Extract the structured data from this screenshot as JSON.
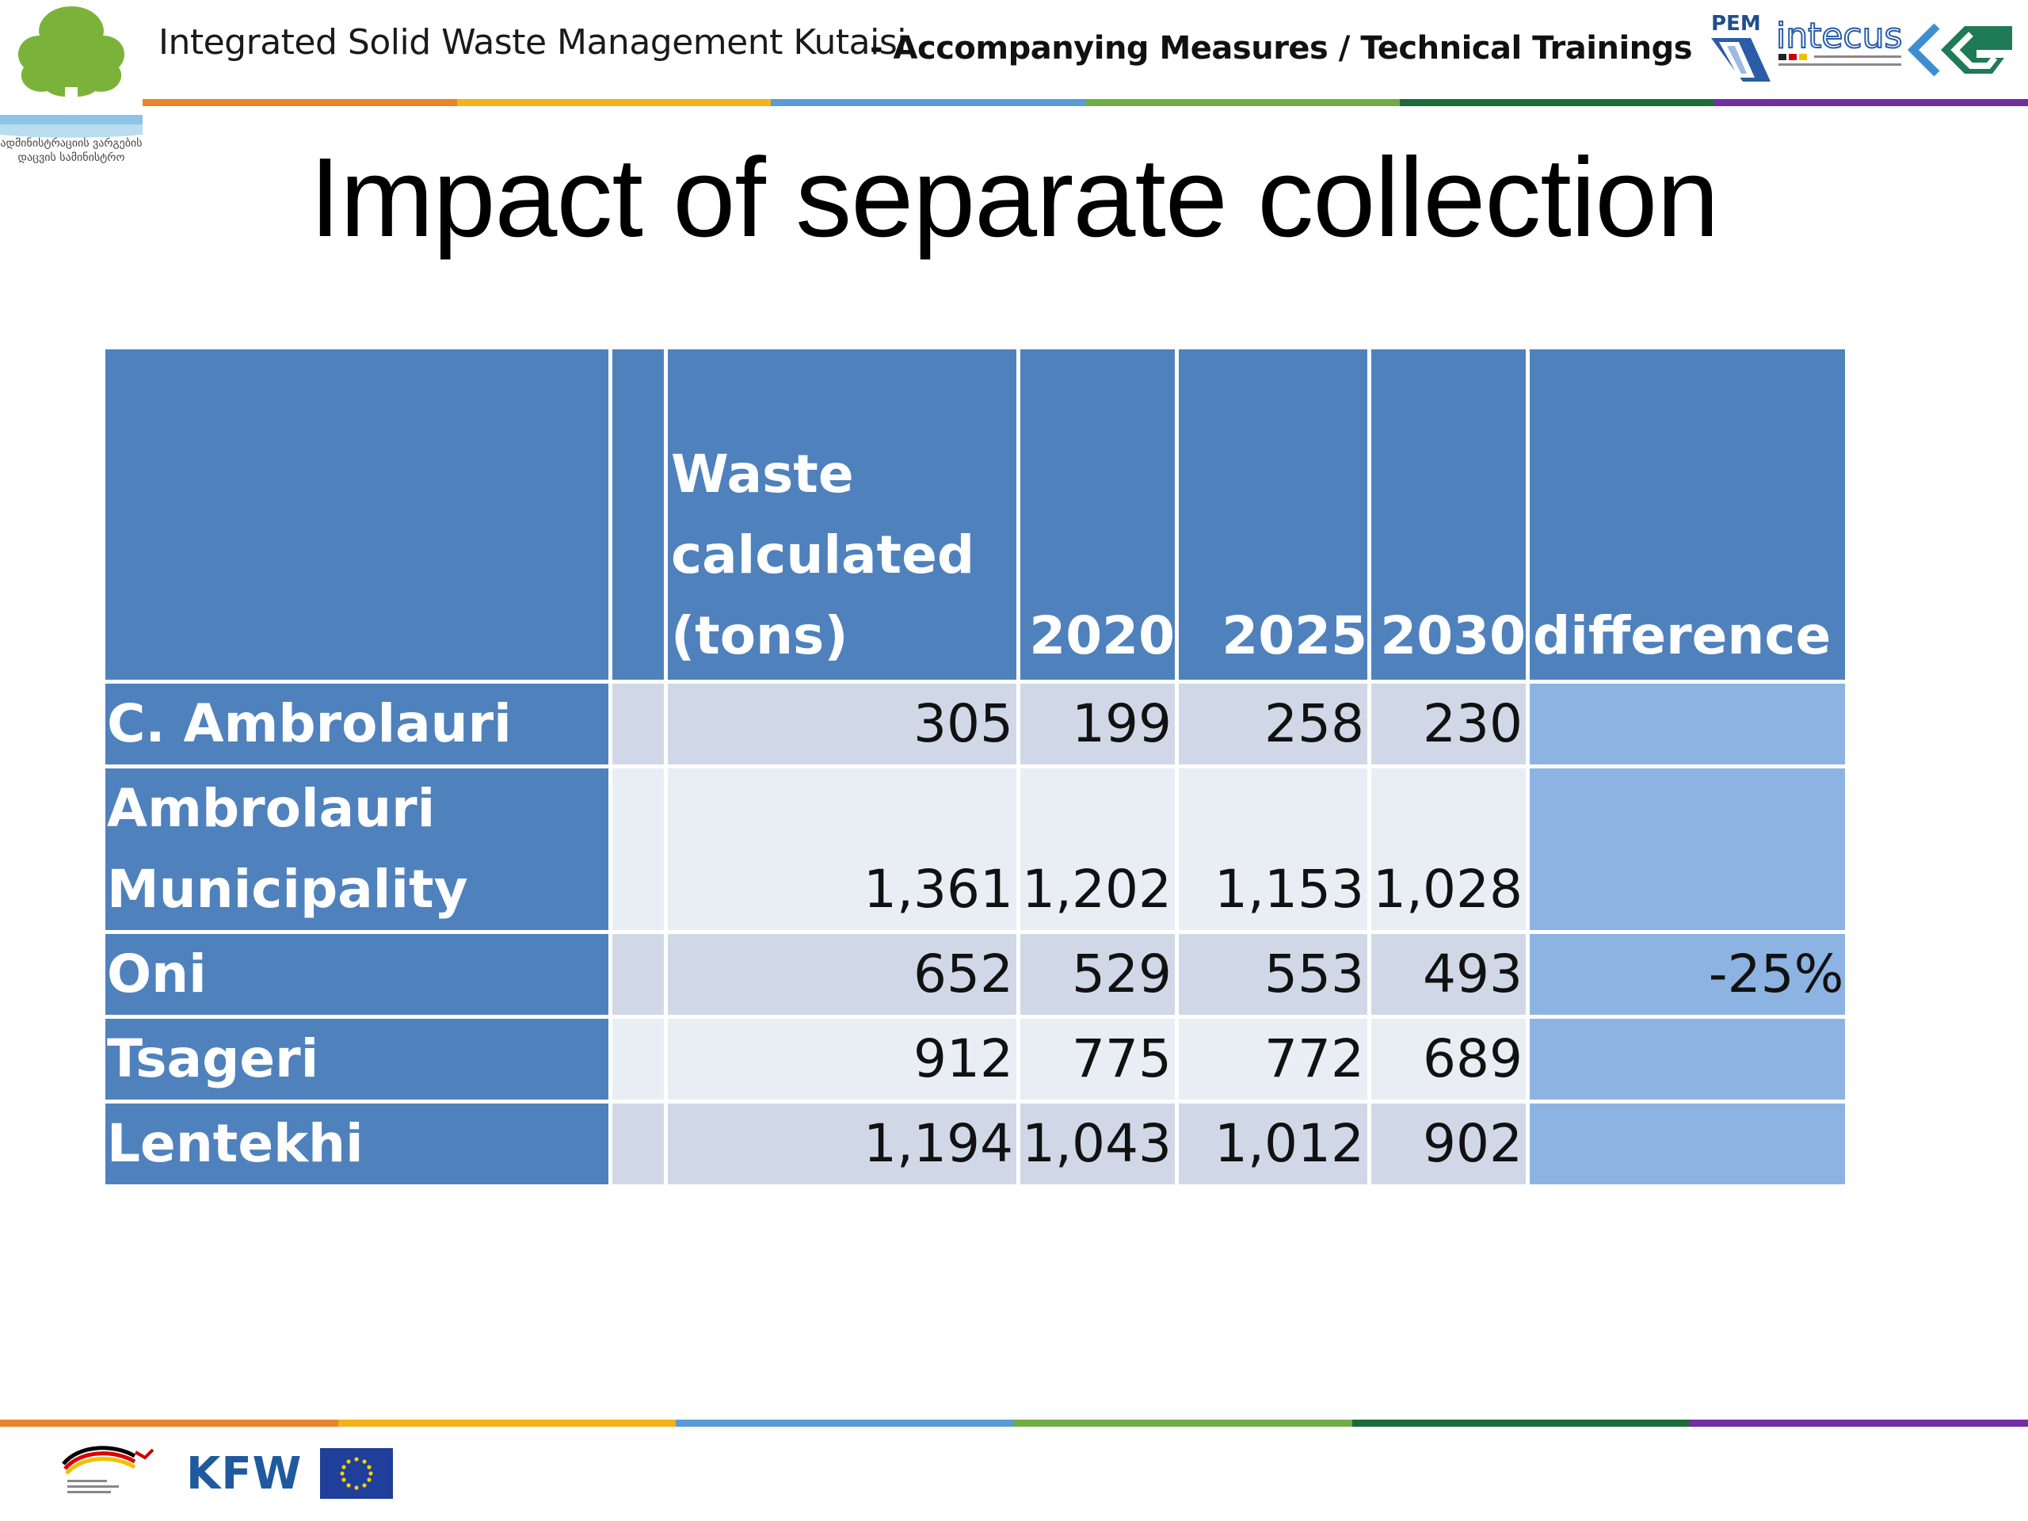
{
  "header": {
    "title": "Integrated Solid Waste Management Kutaisi",
    "subtitle": "- Accompanying Measures / Technical Trainings",
    "logo_left_text_line1": "ადმინისტრაციის ვარგების",
    "logo_left_text_line2": "დაცვის სამინისტრო",
    "logo_right_text_pem": "PEM",
    "logo_right_text_intecus": "intecus"
  },
  "slide": {
    "title": "Impact of separate collection"
  },
  "table": {
    "headers": [
      "",
      "",
      "Waste calculated (tons)",
      "2020",
      "2025",
      "2030",
      "difference"
    ],
    "header_waste_line1": "Waste",
    "header_waste_line2": "calculated",
    "header_waste_line3": "(tons)",
    "rows": [
      {
        "label": "C. Ambrolauri",
        "waste": "305",
        "y2020": "199",
        "y2025": "258",
        "y2030": "230",
        "difference": ""
      },
      {
        "label": "Ambrolauri Municipality",
        "label_line1": "Ambrolauri",
        "label_line2": "Municipality",
        "waste": "1,361",
        "y2020": "1,202",
        "y2025": "1,153",
        "y2030": "1,028",
        "difference": ""
      },
      {
        "label": "Oni",
        "waste": "652",
        "y2020": "529",
        "y2025": "553",
        "y2030": "493",
        "difference": "-25%"
      },
      {
        "label": "Tsageri",
        "waste": "912",
        "y2020": "775",
        "y2025": "772",
        "y2030": "689",
        "difference": ""
      },
      {
        "label": "Lentekhi",
        "waste": "1,194",
        "y2020": "1,043",
        "y2025": "1,012",
        "y2030": "902",
        "difference": ""
      }
    ]
  },
  "footer": {
    "logo_kfw": "KFW"
  },
  "colors": {
    "header_fill": "#4f81bd",
    "row_odd": "#d0d8e8",
    "row_even": "#e9edf4",
    "difference_fill": "#8db3e2",
    "band": [
      "#e8852a",
      "#f2b21a",
      "#5b9bd5",
      "#70ad47",
      "#1e6b3a",
      "#7030a0"
    ]
  }
}
